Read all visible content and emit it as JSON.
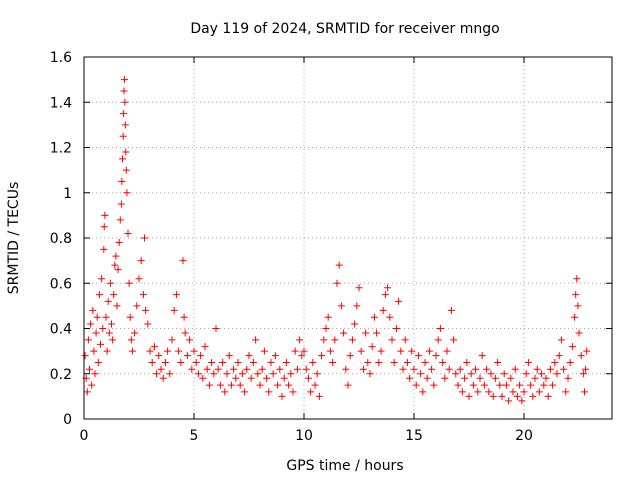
{
  "chart_data": {
    "type": "scatter",
    "title": "Day 119 of 2024, SRMTID for receiver mngo",
    "xlabel": "GPS time / hours",
    "ylabel": "SRMTID / TECUs",
    "xlim": [
      0,
      24
    ],
    "ylim": [
      0,
      1.6
    ],
    "xticks": [
      0,
      5,
      10,
      15,
      20
    ],
    "yticks": [
      0,
      0.2,
      0.4,
      0.6,
      0.8,
      1,
      1.2,
      1.4,
      1.6
    ],
    "xtick_labels": [
      "0",
      "5",
      "10",
      "15",
      "20"
    ],
    "ytick_labels": [
      "0",
      "0.2",
      "0.4",
      "0.6",
      "0.8",
      "1",
      "1.2",
      "1.4",
      "1.6"
    ],
    "grid": true,
    "marker": "+",
    "series": [
      {
        "name": "SRMTID",
        "color": "#ff0000",
        "points": [
          [
            0.05,
            0.28
          ],
          [
            0.1,
            0.18
          ],
          [
            0.15,
            0.12
          ],
          [
            0.2,
            0.35
          ],
          [
            0.25,
            0.22
          ],
          [
            0.3,
            0.42
          ],
          [
            0.35,
            0.15
          ],
          [
            0.4,
            0.48
          ],
          [
            0.45,
            0.3
          ],
          [
            0.5,
            0.2
          ],
          [
            0.55,
            0.38
          ],
          [
            0.6,
            0.45
          ],
          [
            0.65,
            0.25
          ],
          [
            0.7,
            0.55
          ],
          [
            0.75,
            0.33
          ],
          [
            0.8,
            0.62
          ],
          [
            0.85,
            0.4
          ],
          [
            0.9,
            0.75
          ],
          [
            0.92,
            0.85
          ],
          [
            0.95,
            0.9
          ],
          [
            1.0,
            0.45
          ],
          [
            1.05,
            0.3
          ],
          [
            1.1,
            0.52
          ],
          [
            1.15,
            0.38
          ],
          [
            1.2,
            0.6
          ],
          [
            1.25,
            0.42
          ],
          [
            1.3,
            0.35
          ],
          [
            1.35,
            0.55
          ],
          [
            1.4,
            0.68
          ],
          [
            1.45,
            0.72
          ],
          [
            1.5,
            0.5
          ],
          [
            1.55,
            0.66
          ],
          [
            1.6,
            0.78
          ],
          [
            1.65,
            0.88
          ],
          [
            1.7,
            0.95
          ],
          [
            1.72,
            1.05
          ],
          [
            1.75,
            1.15
          ],
          [
            1.78,
            1.25
          ],
          [
            1.8,
            1.35
          ],
          [
            1.82,
            1.45
          ],
          [
            1.84,
            1.5
          ],
          [
            1.86,
            1.4
          ],
          [
            1.88,
            1.3
          ],
          [
            1.9,
            1.18
          ],
          [
            1.92,
            1.1
          ],
          [
            1.95,
            1.0
          ],
          [
            2.0,
            0.82
          ],
          [
            2.05,
            0.6
          ],
          [
            2.1,
            0.45
          ],
          [
            2.15,
            0.35
          ],
          [
            2.2,
            0.3
          ],
          [
            2.3,
            0.38
          ],
          [
            2.4,
            0.5
          ],
          [
            2.5,
            0.62
          ],
          [
            2.6,
            0.7
          ],
          [
            2.7,
            0.55
          ],
          [
            2.75,
            0.8
          ],
          [
            2.8,
            0.48
          ],
          [
            2.9,
            0.42
          ],
          [
            3.0,
            0.3
          ],
          [
            3.1,
            0.25
          ],
          [
            3.2,
            0.32
          ],
          [
            3.3,
            0.2
          ],
          [
            3.4,
            0.28
          ],
          [
            3.5,
            0.22
          ],
          [
            3.6,
            0.18
          ],
          [
            3.7,
            0.25
          ],
          [
            3.8,
            0.3
          ],
          [
            3.9,
            0.2
          ],
          [
            4.0,
            0.35
          ],
          [
            4.1,
            0.48
          ],
          [
            4.2,
            0.55
          ],
          [
            4.3,
            0.3
          ],
          [
            4.4,
            0.25
          ],
          [
            4.5,
            0.7
          ],
          [
            4.55,
            0.45
          ],
          [
            4.6,
            0.38
          ],
          [
            4.7,
            0.28
          ],
          [
            4.8,
            0.35
          ],
          [
            4.9,
            0.22
          ],
          [
            5.0,
            0.3
          ],
          [
            5.1,
            0.25
          ],
          [
            5.2,
            0.2
          ],
          [
            5.3,
            0.28
          ],
          [
            5.4,
            0.18
          ],
          [
            5.5,
            0.32
          ],
          [
            5.6,
            0.22
          ],
          [
            5.7,
            0.15
          ],
          [
            5.8,
            0.25
          ],
          [
            5.9,
            0.2
          ],
          [
            6.0,
            0.4
          ],
          [
            6.1,
            0.22
          ],
          [
            6.2,
            0.15
          ],
          [
            6.3,
            0.25
          ],
          [
            6.4,
            0.12
          ],
          [
            6.5,
            0.2
          ],
          [
            6.6,
            0.28
          ],
          [
            6.7,
            0.15
          ],
          [
            6.8,
            0.22
          ],
          [
            6.9,
            0.18
          ],
          [
            7.0,
            0.25
          ],
          [
            7.1,
            0.15
          ],
          [
            7.2,
            0.2
          ],
          [
            7.3,
            0.12
          ],
          [
            7.4,
            0.22
          ],
          [
            7.5,
            0.28
          ],
          [
            7.6,
            0.18
          ],
          [
            7.7,
            0.25
          ],
          [
            7.8,
            0.35
          ],
          [
            7.9,
            0.2
          ],
          [
            8.0,
            0.15
          ],
          [
            8.1,
            0.22
          ],
          [
            8.2,
            0.3
          ],
          [
            8.3,
            0.18
          ],
          [
            8.4,
            0.12
          ],
          [
            8.5,
            0.25
          ],
          [
            8.6,
            0.2
          ],
          [
            8.7,
            0.28
          ],
          [
            8.8,
            0.15
          ],
          [
            8.9,
            0.22
          ],
          [
            9.0,
            0.1
          ],
          [
            9.1,
            0.18
          ],
          [
            9.2,
            0.25
          ],
          [
            9.3,
            0.15
          ],
          [
            9.4,
            0.2
          ],
          [
            9.5,
            0.12
          ],
          [
            9.6,
            0.3
          ],
          [
            9.7,
            0.22
          ],
          [
            9.8,
            0.35
          ],
          [
            9.9,
            0.28
          ],
          [
            10.0,
            0.3
          ],
          [
            10.1,
            0.22
          ],
          [
            10.2,
            0.18
          ],
          [
            10.3,
            0.12
          ],
          [
            10.4,
            0.25
          ],
          [
            10.5,
            0.15
          ],
          [
            10.6,
            0.2
          ],
          [
            10.7,
            0.1
          ],
          [
            10.8,
            0.28
          ],
          [
            10.9,
            0.35
          ],
          [
            11.0,
            0.4
          ],
          [
            11.1,
            0.45
          ],
          [
            11.2,
            0.3
          ],
          [
            11.3,
            0.25
          ],
          [
            11.4,
            0.35
          ],
          [
            11.5,
            0.6
          ],
          [
            11.6,
            0.68
          ],
          [
            11.7,
            0.5
          ],
          [
            11.8,
            0.38
          ],
          [
            11.9,
            0.22
          ],
          [
            12.0,
            0.15
          ],
          [
            12.1,
            0.28
          ],
          [
            12.2,
            0.35
          ],
          [
            12.3,
            0.42
          ],
          [
            12.4,
            0.5
          ],
          [
            12.5,
            0.58
          ],
          [
            12.6,
            0.3
          ],
          [
            12.7,
            0.22
          ],
          [
            12.8,
            0.38
          ],
          [
            12.9,
            0.25
          ],
          [
            13.0,
            0.2
          ],
          [
            13.1,
            0.32
          ],
          [
            13.2,
            0.45
          ],
          [
            13.3,
            0.38
          ],
          [
            13.4,
            0.25
          ],
          [
            13.5,
            0.3
          ],
          [
            13.6,
            0.48
          ],
          [
            13.7,
            0.55
          ],
          [
            13.8,
            0.58
          ],
          [
            13.9,
            0.45
          ],
          [
            14.0,
            0.35
          ],
          [
            14.1,
            0.25
          ],
          [
            14.2,
            0.4
          ],
          [
            14.3,
            0.52
          ],
          [
            14.4,
            0.3
          ],
          [
            14.5,
            0.22
          ],
          [
            14.6,
            0.35
          ],
          [
            14.7,
            0.25
          ],
          [
            14.8,
            0.18
          ],
          [
            14.9,
            0.3
          ],
          [
            15.0,
            0.22
          ],
          [
            15.1,
            0.15
          ],
          [
            15.2,
            0.28
          ],
          [
            15.3,
            0.2
          ],
          [
            15.4,
            0.12
          ],
          [
            15.5,
            0.25
          ],
          [
            15.6,
            0.18
          ],
          [
            15.7,
            0.3
          ],
          [
            15.8,
            0.22
          ],
          [
            15.9,
            0.15
          ],
          [
            16.0,
            0.28
          ],
          [
            16.1,
            0.35
          ],
          [
            16.2,
            0.4
          ],
          [
            16.3,
            0.25
          ],
          [
            16.4,
            0.18
          ],
          [
            16.5,
            0.3
          ],
          [
            16.6,
            0.22
          ],
          [
            16.7,
            0.48
          ],
          [
            16.8,
            0.35
          ],
          [
            16.9,
            0.2
          ],
          [
            17.0,
            0.15
          ],
          [
            17.1,
            0.22
          ],
          [
            17.2,
            0.12
          ],
          [
            17.3,
            0.18
          ],
          [
            17.4,
            0.25
          ],
          [
            17.5,
            0.1
          ],
          [
            17.6,
            0.2
          ],
          [
            17.7,
            0.15
          ],
          [
            17.8,
            0.22
          ],
          [
            17.9,
            0.12
          ],
          [
            18.0,
            0.18
          ],
          [
            18.1,
            0.28
          ],
          [
            18.2,
            0.15
          ],
          [
            18.3,
            0.22
          ],
          [
            18.4,
            0.12
          ],
          [
            18.5,
            0.2
          ],
          [
            18.6,
            0.1
          ],
          [
            18.7,
            0.18
          ],
          [
            18.8,
            0.25
          ],
          [
            18.9,
            0.15
          ],
          [
            19.0,
            0.1
          ],
          [
            19.1,
            0.2
          ],
          [
            19.2,
            0.15
          ],
          [
            19.3,
            0.08
          ],
          [
            19.4,
            0.18
          ],
          [
            19.5,
            0.12
          ],
          [
            19.6,
            0.22
          ],
          [
            19.7,
            0.1
          ],
          [
            19.8,
            0.15
          ],
          [
            19.9,
            0.08
          ],
          [
            20.0,
            0.12
          ],
          [
            20.1,
            0.2
          ],
          [
            20.2,
            0.25
          ],
          [
            20.3,
            0.15
          ],
          [
            20.4,
            0.1
          ],
          [
            20.5,
            0.18
          ],
          [
            20.6,
            0.22
          ],
          [
            20.7,
            0.12
          ],
          [
            20.8,
            0.2
          ],
          [
            20.9,
            0.15
          ],
          [
            21.0,
            0.18
          ],
          [
            21.1,
            0.1
          ],
          [
            21.2,
            0.22
          ],
          [
            21.3,
            0.15
          ],
          [
            21.4,
            0.25
          ],
          [
            21.5,
            0.2
          ],
          [
            21.6,
            0.28
          ],
          [
            21.7,
            0.35
          ],
          [
            21.8,
            0.22
          ],
          [
            21.9,
            0.12
          ],
          [
            22.0,
            0.18
          ],
          [
            22.1,
            0.25
          ],
          [
            22.2,
            0.32
          ],
          [
            22.3,
            0.45
          ],
          [
            22.35,
            0.55
          ],
          [
            22.4,
            0.62
          ],
          [
            22.45,
            0.5
          ],
          [
            22.5,
            0.38
          ],
          [
            22.6,
            0.28
          ],
          [
            22.7,
            0.2
          ],
          [
            22.75,
            0.12
          ],
          [
            22.8,
            0.22
          ],
          [
            22.85,
            0.3
          ]
        ]
      }
    ]
  }
}
